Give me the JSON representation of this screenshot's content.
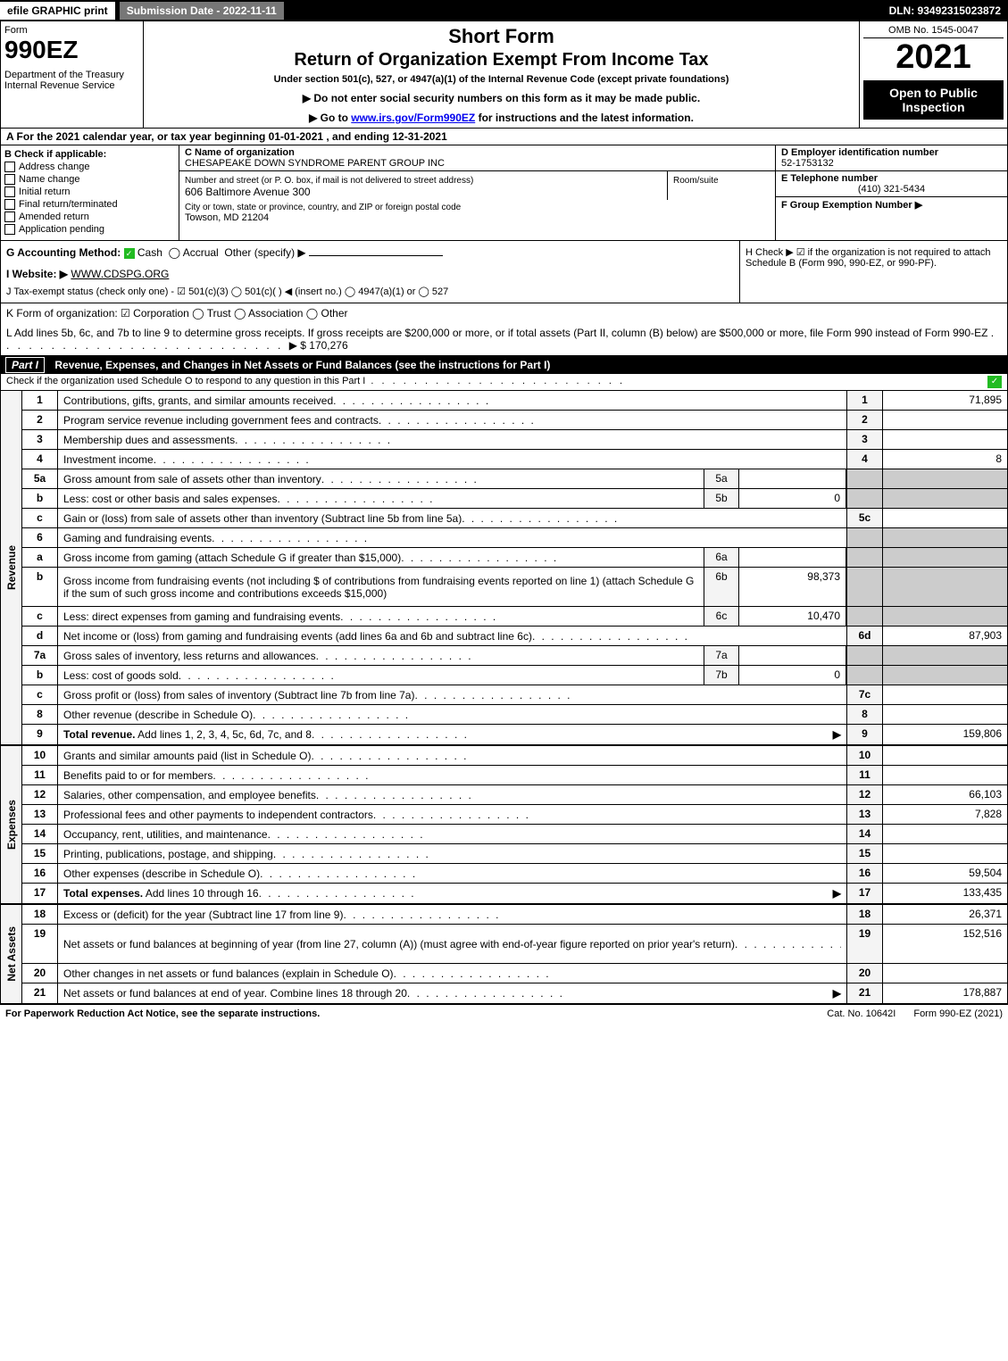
{
  "topbar": {
    "efile": "efile GRAPHIC print",
    "subdate": "Submission Date - 2022-11-11",
    "dln": "DLN: 93492315023872"
  },
  "header": {
    "form_label": "Form",
    "form_no": "990EZ",
    "dept": "Department of the Treasury\nInternal Revenue Service",
    "title1": "Short Form",
    "title2": "Return of Organization Exempt From Income Tax",
    "subtitle": "Under section 501(c), 527, or 4947(a)(1) of the Internal Revenue Code (except private foundations)",
    "instr1": "▶ Do not enter social security numbers on this form as it may be made public.",
    "instr2_pre": "▶ Go to ",
    "instr2_link": "www.irs.gov/Form990EZ",
    "instr2_post": " for instructions and the latest information.",
    "omb": "OMB No. 1545-0047",
    "year": "2021",
    "open": "Open to Public Inspection"
  },
  "lineA": "A  For the 2021 calendar year, or tax year beginning 01-01-2021 , and ending 12-31-2021",
  "sectionB": {
    "label": "B  Check if applicable:",
    "items": [
      "Address change",
      "Name change",
      "Initial return",
      "Final return/terminated",
      "Amended return",
      "Application pending"
    ]
  },
  "sectionC": {
    "name_label": "C Name of organization",
    "name": "CHESAPEAKE DOWN SYNDROME PARENT GROUP INC",
    "street_label": "Number and street (or P. O. box, if mail is not delivered to street address)",
    "room_label": "Room/suite",
    "street": "606 Baltimore Avenue 300",
    "city_label": "City or town, state or province, country, and ZIP or foreign postal code",
    "city": "Towson, MD  21204"
  },
  "sectionDEF": {
    "d_label": "D Employer identification number",
    "d_val": "52-1753132",
    "e_label": "E Telephone number",
    "e_val": "(410) 321-5434",
    "f_label": "F Group Exemption Number   ▶"
  },
  "lineG": {
    "label": "G Accounting Method:",
    "cash": "Cash",
    "accrual": "Accrual",
    "other": "Other (specify) ▶"
  },
  "lineH": "H  Check ▶ ☑ if the organization is not required to attach Schedule B (Form 990, 990-EZ, or 990-PF).",
  "lineI": {
    "label": "I Website: ▶",
    "val": "WWW.CDSPG.ORG"
  },
  "lineJ": "J Tax-exempt status (check only one) - ☑ 501(c)(3)  ◯ 501(c)(  ) ◀ (insert no.)  ◯ 4947(a)(1) or  ◯ 527",
  "lineK": "K Form of organization:  ☑ Corporation  ◯ Trust  ◯ Association  ◯ Other",
  "lineL": {
    "text": "L Add lines 5b, 6c, and 7b to line 9 to determine gross receipts. If gross receipts are $200,000 or more, or if total assets (Part II, column (B) below) are $500,000 or more, file Form 990 instead of Form 990-EZ",
    "amount": "▶ $ 170,276"
  },
  "part1": {
    "header_partno": "Part I",
    "header": "Revenue, Expenses, and Changes in Net Assets or Fund Balances (see the instructions for Part I)",
    "checkrow": "Check if the organization used Schedule O to respond to any question in this Part I"
  },
  "sections": {
    "revenue": "Revenue",
    "expenses": "Expenses",
    "netassets": "Net Assets"
  },
  "rows": [
    {
      "n": "1",
      "d": "Contributions, gifts, grants, and similar amounts received",
      "rn": "1",
      "ra": "71,895"
    },
    {
      "n": "2",
      "d": "Program service revenue including government fees and contracts",
      "rn": "2",
      "ra": ""
    },
    {
      "n": "3",
      "d": "Membership dues and assessments",
      "rn": "3",
      "ra": ""
    },
    {
      "n": "4",
      "d": "Investment income",
      "rn": "4",
      "ra": "8"
    },
    {
      "n": "5a",
      "d": "Gross amount from sale of assets other than inventory",
      "mn": "5a",
      "ma": "",
      "shaded": true
    },
    {
      "n": "b",
      "d": "Less: cost or other basis and sales expenses",
      "mn": "5b",
      "ma": "0",
      "shaded": true
    },
    {
      "n": "c",
      "d": "Gain or (loss) from sale of assets other than inventory (Subtract line 5b from line 5a)",
      "rn": "5c",
      "ra": ""
    },
    {
      "n": "6",
      "d": "Gaming and fundraising events",
      "shaded": true,
      "noamt": true
    },
    {
      "n": "a",
      "d": "Gross income from gaming (attach Schedule G if greater than $15,000)",
      "mn": "6a",
      "ma": "",
      "shaded": true
    },
    {
      "n": "b",
      "d": "Gross income from fundraising events (not including $                of contributions from fundraising events reported on line 1) (attach Schedule G if the sum of such gross income and contributions exceeds $15,000)",
      "mn": "6b",
      "ma": "98,373",
      "shaded": true,
      "tall": true
    },
    {
      "n": "c",
      "d": "Less: direct expenses from gaming and fundraising events",
      "mn": "6c",
      "ma": "10,470",
      "shaded": true
    },
    {
      "n": "d",
      "d": "Net income or (loss) from gaming and fundraising events (add lines 6a and 6b and subtract line 6c)",
      "rn": "6d",
      "ra": "87,903"
    },
    {
      "n": "7a",
      "d": "Gross sales of inventory, less returns and allowances",
      "mn": "7a",
      "ma": "",
      "shaded": true
    },
    {
      "n": "b",
      "d": "Less: cost of goods sold",
      "mn": "7b",
      "ma": "0",
      "shaded": true
    },
    {
      "n": "c",
      "d": "Gross profit or (loss) from sales of inventory (Subtract line 7b from line 7a)",
      "rn": "7c",
      "ra": ""
    },
    {
      "n": "8",
      "d": "Other revenue (describe in Schedule O)",
      "rn": "8",
      "ra": ""
    },
    {
      "n": "9",
      "d": "Total revenue. Add lines 1, 2, 3, 4, 5c, 6d, 7c, and 8",
      "rn": "9",
      "ra": "159,806",
      "bold": true,
      "arrow": true
    }
  ],
  "exp_rows": [
    {
      "n": "10",
      "d": "Grants and similar amounts paid (list in Schedule O)",
      "rn": "10",
      "ra": ""
    },
    {
      "n": "11",
      "d": "Benefits paid to or for members",
      "rn": "11",
      "ra": ""
    },
    {
      "n": "12",
      "d": "Salaries, other compensation, and employee benefits",
      "rn": "12",
      "ra": "66,103"
    },
    {
      "n": "13",
      "d": "Professional fees and other payments to independent contractors",
      "rn": "13",
      "ra": "7,828"
    },
    {
      "n": "14",
      "d": "Occupancy, rent, utilities, and maintenance",
      "rn": "14",
      "ra": ""
    },
    {
      "n": "15",
      "d": "Printing, publications, postage, and shipping",
      "rn": "15",
      "ra": ""
    },
    {
      "n": "16",
      "d": "Other expenses (describe in Schedule O)",
      "rn": "16",
      "ra": "59,504"
    },
    {
      "n": "17",
      "d": "Total expenses. Add lines 10 through 16",
      "rn": "17",
      "ra": "133,435",
      "bold": true,
      "arrow": true
    }
  ],
  "na_rows": [
    {
      "n": "18",
      "d": "Excess or (deficit) for the year (Subtract line 17 from line 9)",
      "rn": "18",
      "ra": "26,371"
    },
    {
      "n": "19",
      "d": "Net assets or fund balances at beginning of year (from line 27, column (A)) (must agree with end-of-year figure reported on prior year's return)",
      "rn": "19",
      "ra": "152,516",
      "tall": true
    },
    {
      "n": "20",
      "d": "Other changes in net assets or fund balances (explain in Schedule O)",
      "rn": "20",
      "ra": ""
    },
    {
      "n": "21",
      "d": "Net assets or fund balances at end of year. Combine lines 18 through 20",
      "rn": "21",
      "ra": "178,887",
      "arrow": true
    }
  ],
  "footer": {
    "l": "For Paperwork Reduction Act Notice, see the separate instructions.",
    "c": "Cat. No. 10642I",
    "r": "Form 990-EZ (2021)"
  }
}
